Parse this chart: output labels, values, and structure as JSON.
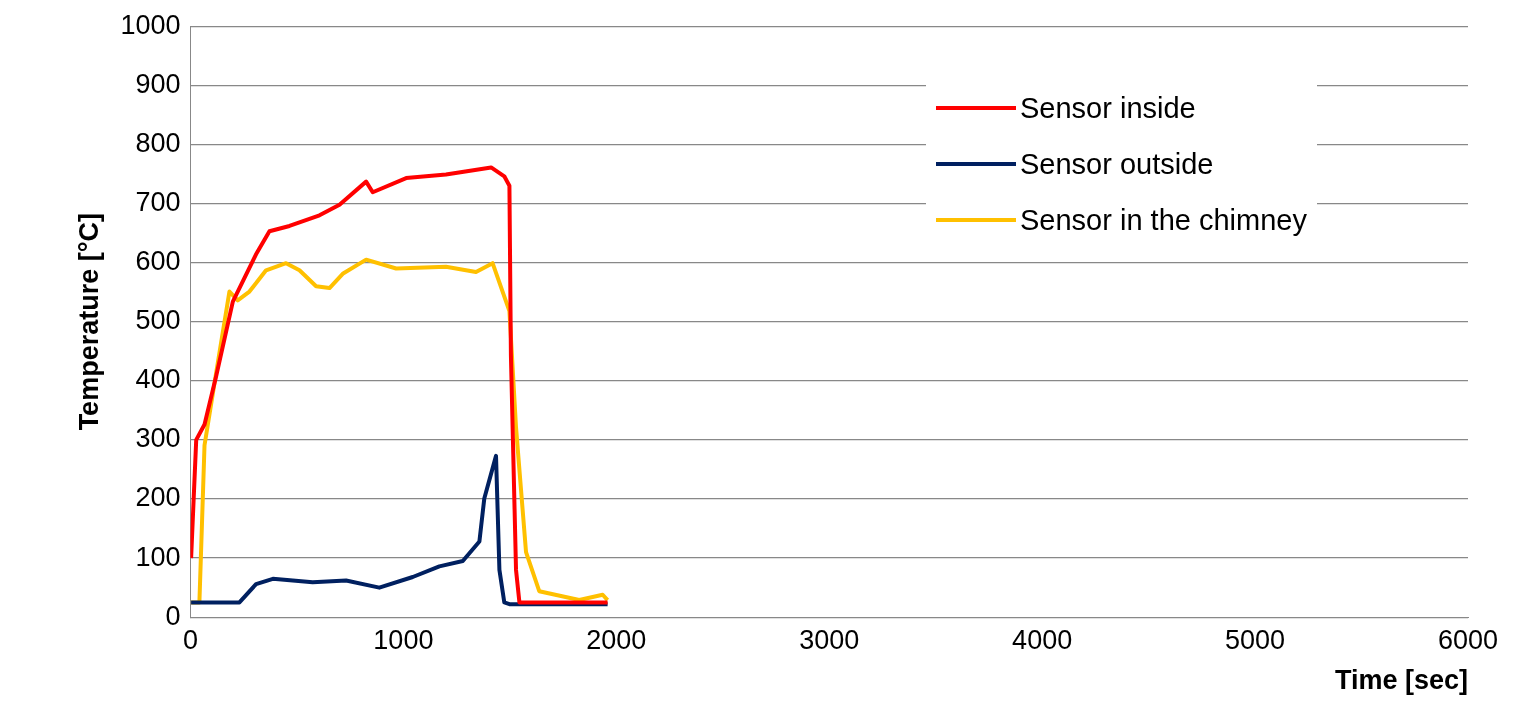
{
  "chart_data": {
    "type": "line",
    "xlabel": "Time [sec]",
    "ylabel": "Temperature [°C]",
    "xlim": [
      0,
      6000
    ],
    "xticks": [
      0,
      1000,
      2000,
      3000,
      4000,
      5000,
      6000
    ],
    "ylim": [
      0,
      1000
    ],
    "yticks": [
      0,
      100,
      200,
      300,
      400,
      500,
      600,
      700,
      800,
      900,
      1000
    ],
    "grid": "y",
    "legend": "top right",
    "marker": "none",
    "line_style": "solid",
    "series": [
      {
        "name": "Sensor inside",
        "color": "#ff0000",
        "x": [
          3,
          27,
          66,
          120,
          199,
          308,
          371,
          465,
          606,
          700,
          825,
          856,
          1013,
          1200,
          1412,
          1474,
          1498,
          1505,
          1529,
          1545,
          1959
        ],
        "values": [
          100,
          300,
          326,
          407,
          534,
          614,
          653,
          662,
          680,
          698,
          737,
          719,
          743,
          749,
          761,
          746,
          730,
          443,
          80,
          25,
          25
        ]
      },
      {
        "name": "Sensor outside",
        "color": "#002060",
        "x": [
          3,
          230,
          308,
          387,
          574,
          731,
          887,
          1044,
          1169,
          1279,
          1357,
          1380,
          1435,
          1451,
          1474,
          1498,
          1959
        ],
        "values": [
          25,
          25,
          56,
          65,
          59,
          62,
          50,
          68,
          86,
          95,
          128,
          201,
          273,
          80,
          25,
          22,
          22
        ]
      },
      {
        "name": "Sensor in the chimney",
        "color": "#ffc000",
        "x": [
          3,
          42,
          66,
          120,
          183,
          222,
          277,
          355,
          449,
          512,
          590,
          653,
          715,
          825,
          966,
          1200,
          1341,
          1419,
          1498,
          1529,
          1576,
          1638,
          1826,
          1936,
          1959
        ],
        "values": [
          25,
          25,
          291,
          412,
          551,
          536,
          551,
          587,
          599,
          587,
          560,
          557,
          581,
          605,
          590,
          593,
          584,
          599,
          518,
          321,
          110,
          44,
          29,
          38,
          29
        ]
      }
    ]
  }
}
